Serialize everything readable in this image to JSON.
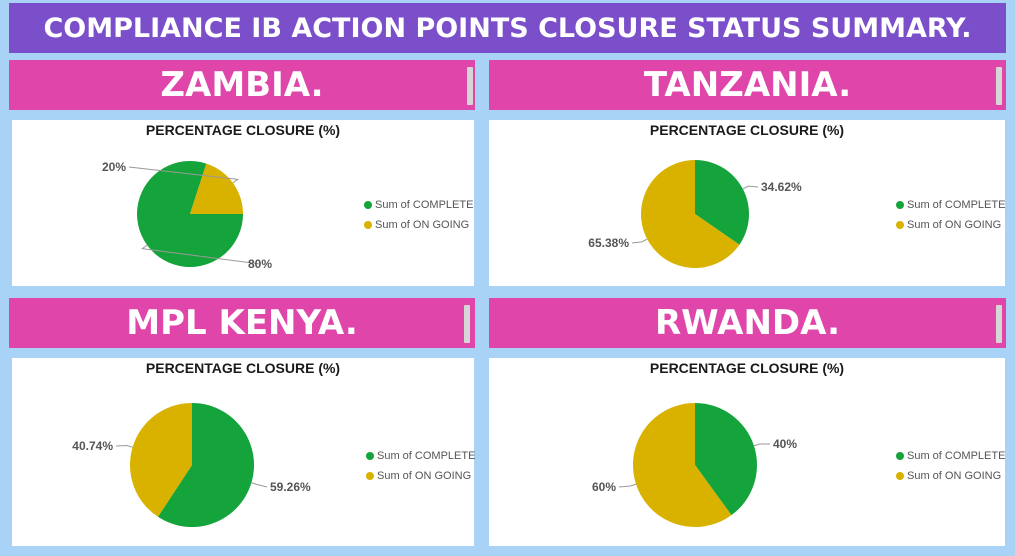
{
  "page_title": "COMPLIANCE IB ACTION POINTS CLOSURE STATUS SUMMARY.",
  "colors": {
    "complete": "#15a33b",
    "ongoing": "#d9b200",
    "banner": "#e046aa",
    "title_banner": "#7b4fc9"
  },
  "chart_data": [
    {
      "type": "pie",
      "country": "ZAMBIA.",
      "title": "PERCENTAGE CLOSURE (%)",
      "categories": [
        "Sum of COMPLETE",
        "Sum of ON GOING"
      ],
      "values": [
        80,
        20
      ],
      "labels": [
        "80%",
        "20%"
      ],
      "legend_placement": "right"
    },
    {
      "type": "pie",
      "country": "TANZANIA.",
      "title": "PERCENTAGE CLOSURE (%)",
      "categories": [
        "Sum of COMPLETE",
        "Sum of ON GOING"
      ],
      "values": [
        34.62,
        65.38
      ],
      "labels": [
        "34.62%",
        "65.38%"
      ],
      "legend_placement": "right"
    },
    {
      "type": "pie",
      "country": "MPL KENYA.",
      "title": "PERCENTAGE CLOSURE (%)",
      "categories": [
        "Sum of COMPLETE",
        "Sum of ON GOING"
      ],
      "values": [
        59.26,
        40.74
      ],
      "labels": [
        "59.26%",
        "40.74%"
      ],
      "legend_placement": "right"
    },
    {
      "type": "pie",
      "country": "RWANDA.",
      "title": "PERCENTAGE CLOSURE (%)",
      "categories": [
        "Sum of COMPLETE",
        "Sum of ON GOING"
      ],
      "values": [
        40,
        60
      ],
      "labels": [
        "40%",
        "60%"
      ],
      "legend_placement": "right"
    }
  ]
}
